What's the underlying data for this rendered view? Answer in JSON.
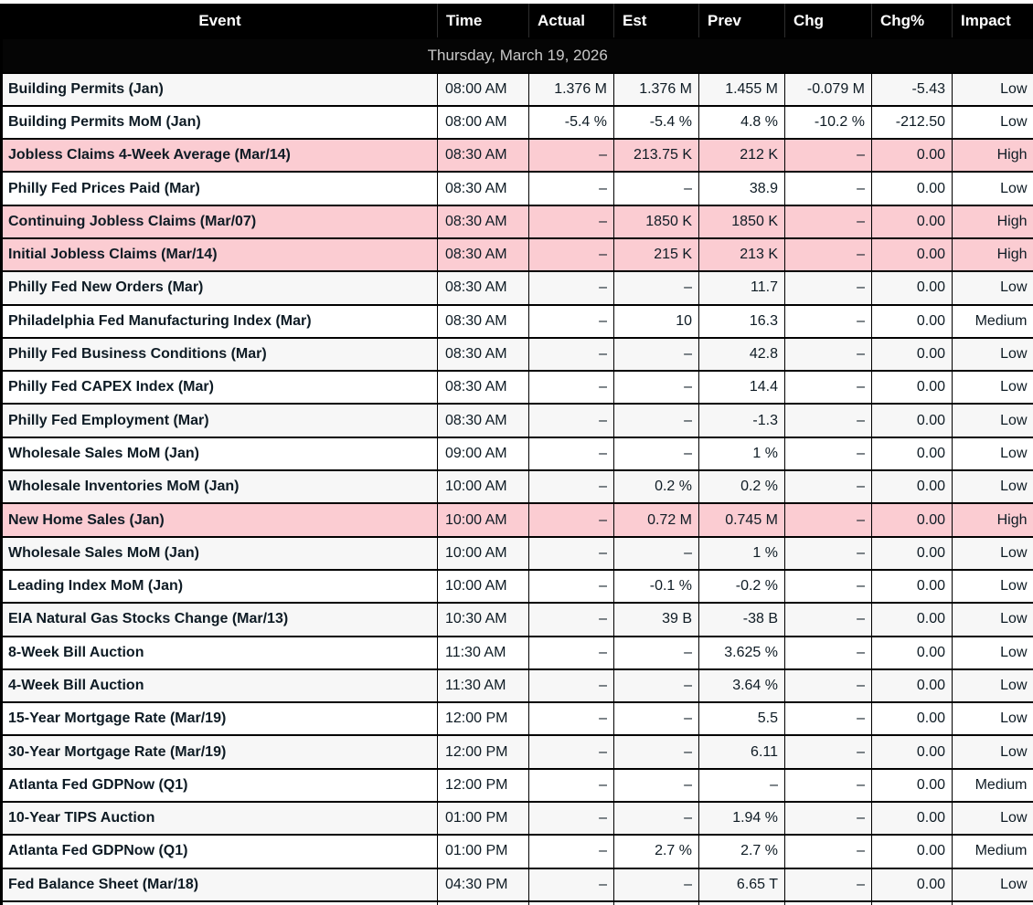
{
  "table": {
    "columns": [
      "Event",
      "Time",
      "Actual",
      "Est",
      "Prev",
      "Chg",
      "Chg%",
      "Impact"
    ],
    "date_header": "Thursday, March 19, 2026",
    "rows": [
      {
        "event": "Building Permits (Jan)",
        "time": "08:00 AM",
        "actual": "1.376 M",
        "est": "1.376 M",
        "prev": "1.455 M",
        "chg": "-0.079 M",
        "chg_pct": "-5.43",
        "impact": "Low"
      },
      {
        "event": "Building Permits MoM (Jan)",
        "time": "08:00 AM",
        "actual": "-5.4 %",
        "est": "-5.4 %",
        "prev": "4.8 %",
        "chg": "-10.2 %",
        "chg_pct": "-212.50",
        "impact": "Low"
      },
      {
        "event": "Jobless Claims 4-Week Average (Mar/14)",
        "time": "08:30 AM",
        "actual": "–",
        "est": "213.75 K",
        "prev": "212 K",
        "chg": "–",
        "chg_pct": "0.00",
        "impact": "High"
      },
      {
        "event": "Philly Fed Prices Paid (Mar)",
        "time": "08:30 AM",
        "actual": "–",
        "est": "–",
        "prev": "38.9",
        "chg": "–",
        "chg_pct": "0.00",
        "impact": "Low"
      },
      {
        "event": "Continuing Jobless Claims (Mar/07)",
        "time": "08:30 AM",
        "actual": "–",
        "est": "1850 K",
        "prev": "1850 K",
        "chg": "–",
        "chg_pct": "0.00",
        "impact": "High"
      },
      {
        "event": "Initial Jobless Claims (Mar/14)",
        "time": "08:30 AM",
        "actual": "–",
        "est": "215 K",
        "prev": "213 K",
        "chg": "–",
        "chg_pct": "0.00",
        "impact": "High"
      },
      {
        "event": "Philly Fed New Orders (Mar)",
        "time": "08:30 AM",
        "actual": "–",
        "est": "–",
        "prev": "11.7",
        "chg": "–",
        "chg_pct": "0.00",
        "impact": "Low"
      },
      {
        "event": "Philadelphia Fed Manufacturing Index (Mar)",
        "time": "08:30 AM",
        "actual": "–",
        "est": "10",
        "prev": "16.3",
        "chg": "–",
        "chg_pct": "0.00",
        "impact": "Medium"
      },
      {
        "event": "Philly Fed Business Conditions (Mar)",
        "time": "08:30 AM",
        "actual": "–",
        "est": "–",
        "prev": "42.8",
        "chg": "–",
        "chg_pct": "0.00",
        "impact": "Low"
      },
      {
        "event": "Philly Fed CAPEX Index (Mar)",
        "time": "08:30 AM",
        "actual": "–",
        "est": "–",
        "prev": "14.4",
        "chg": "–",
        "chg_pct": "0.00",
        "impact": "Low"
      },
      {
        "event": "Philly Fed Employment (Mar)",
        "time": "08:30 AM",
        "actual": "–",
        "est": "–",
        "prev": "-1.3",
        "chg": "–",
        "chg_pct": "0.00",
        "impact": "Low"
      },
      {
        "event": "Wholesale Sales MoM (Jan)",
        "time": "09:00 AM",
        "actual": "–",
        "est": "–",
        "prev": "1 %",
        "chg": "–",
        "chg_pct": "0.00",
        "impact": "Low"
      },
      {
        "event": "Wholesale Inventories MoM (Jan)",
        "time": "10:00 AM",
        "actual": "–",
        "est": "0.2 %",
        "prev": "0.2 %",
        "chg": "–",
        "chg_pct": "0.00",
        "impact": "Low"
      },
      {
        "event": "New Home Sales (Jan)",
        "time": "10:00 AM",
        "actual": "–",
        "est": "0.72 M",
        "prev": "0.745 M",
        "chg": "–",
        "chg_pct": "0.00",
        "impact": "High"
      },
      {
        "event": "Wholesale Sales MoM (Jan)",
        "time": "10:00 AM",
        "actual": "–",
        "est": "–",
        "prev": "1 %",
        "chg": "–",
        "chg_pct": "0.00",
        "impact": "Low"
      },
      {
        "event": "Leading Index MoM (Jan)",
        "time": "10:00 AM",
        "actual": "–",
        "est": "-0.1 %",
        "prev": "-0.2 %",
        "chg": "–",
        "chg_pct": "0.00",
        "impact": "Low"
      },
      {
        "event": "EIA Natural Gas Stocks Change (Mar/13)",
        "time": "10:30 AM",
        "actual": "–",
        "est": "39 B",
        "prev": "-38 B",
        "chg": "–",
        "chg_pct": "0.00",
        "impact": "Low"
      },
      {
        "event": "8-Week Bill Auction",
        "time": "11:30 AM",
        "actual": "–",
        "est": "–",
        "prev": "3.625 %",
        "chg": "–",
        "chg_pct": "0.00",
        "impact": "Low"
      },
      {
        "event": "4-Week Bill Auction",
        "time": "11:30 AM",
        "actual": "–",
        "est": "–",
        "prev": "3.64 %",
        "chg": "–",
        "chg_pct": "0.00",
        "impact": "Low"
      },
      {
        "event": "15-Year Mortgage Rate (Mar/19)",
        "time": "12:00 PM",
        "actual": "–",
        "est": "–",
        "prev": "5.5",
        "chg": "–",
        "chg_pct": "0.00",
        "impact": "Low"
      },
      {
        "event": "30-Year Mortgage Rate (Mar/19)",
        "time": "12:00 PM",
        "actual": "–",
        "est": "–",
        "prev": "6.11",
        "chg": "–",
        "chg_pct": "0.00",
        "impact": "Low"
      },
      {
        "event": "Atlanta Fed GDPNow (Q1)",
        "time": "12:00 PM",
        "actual": "–",
        "est": "–",
        "prev": "–",
        "chg": "–",
        "chg_pct": "0.00",
        "impact": "Medium"
      },
      {
        "event": "10-Year TIPS Auction",
        "time": "01:00 PM",
        "actual": "–",
        "est": "–",
        "prev": "1.94 %",
        "chg": "–",
        "chg_pct": "0.00",
        "impact": "Low"
      },
      {
        "event": "Atlanta Fed GDPNow (Q1)",
        "time": "01:00 PM",
        "actual": "–",
        "est": "2.7 %",
        "prev": "2.7 %",
        "chg": "–",
        "chg_pct": "0.00",
        "impact": "Medium"
      },
      {
        "event": "Fed Balance Sheet (Mar/18)",
        "time": "04:30 PM",
        "actual": "–",
        "est": "–",
        "prev": "6.65 T",
        "chg": "–",
        "chg_pct": "0.00",
        "impact": "Low"
      }
    ]
  },
  "colors": {
    "header_bg": "#000000",
    "header_text": "#ffffff",
    "date_text": "#c9c9c9",
    "text": "#0e1b24",
    "stripe": "#f7f7f7",
    "high_row": "#fbccd2"
  }
}
